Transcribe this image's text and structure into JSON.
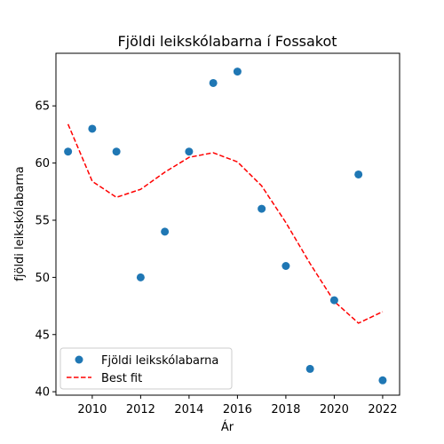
{
  "chart_data": {
    "type": "scatter",
    "title": "Fjöldi leikskólabarna í Fossakot",
    "xlabel": "Ár",
    "ylabel": "fjöldi leikskólabarna",
    "xlim": [
      2008.5,
      2022.7
    ],
    "ylim": [
      39.7,
      69.6
    ],
    "xticks": [
      2010,
      2012,
      2014,
      2016,
      2018,
      2020,
      2022
    ],
    "yticks": [
      40,
      45,
      50,
      55,
      60,
      65
    ],
    "grid": false,
    "legend_position": "lower-left",
    "series": [
      {
        "name": "Fjöldi leikskólabarna",
        "kind": "scatter",
        "color": "#1f77b4",
        "x": [
          2009,
          2010,
          2011,
          2012,
          2013,
          2014,
          2015,
          2016,
          2017,
          2018,
          2019,
          2020,
          2021,
          2022
        ],
        "y": [
          61,
          63,
          61,
          50,
          54,
          61,
          67,
          68,
          56,
          51,
          42,
          48,
          59,
          41
        ]
      },
      {
        "name": "Best fit",
        "kind": "line",
        "style": "dashed",
        "color": "#ff0000",
        "x": [
          2009,
          2010,
          2011,
          2012,
          2013,
          2014,
          2015,
          2016,
          2017,
          2018,
          2019,
          2020,
          2021,
          2022
        ],
        "y": [
          63.4,
          58.4,
          57.0,
          57.7,
          59.2,
          60.5,
          60.9,
          60.1,
          58.0,
          54.8,
          51.2,
          47.9,
          46.0,
          47.0
        ]
      }
    ]
  }
}
